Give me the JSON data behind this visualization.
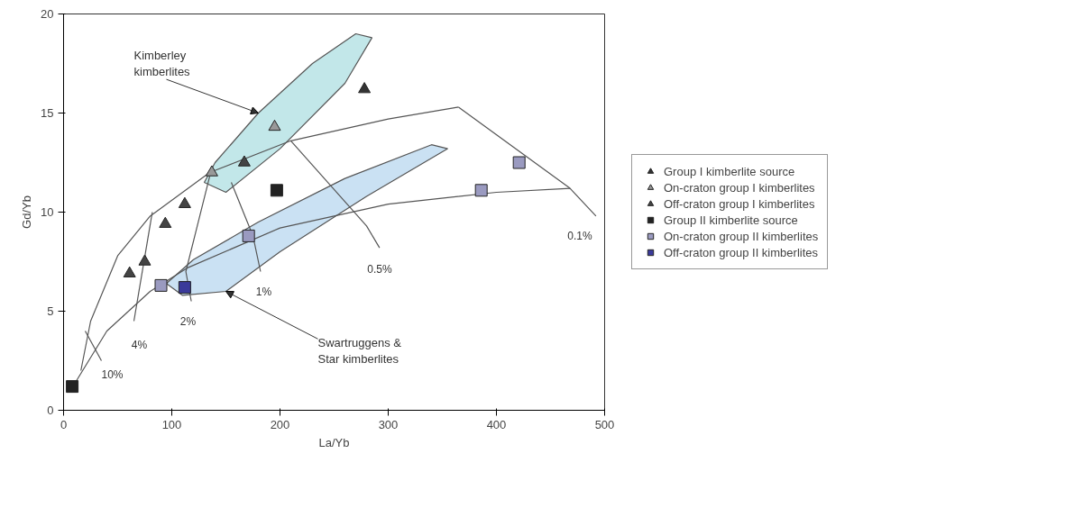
{
  "chart_data": {
    "type": "scatter",
    "xlabel": "La/Yb",
    "ylabel": "Gd/Yb",
    "xlim": [
      0,
      500
    ],
    "ylim": [
      0,
      20
    ],
    "xticks": [
      0,
      100,
      200,
      300,
      400,
      500
    ],
    "yticks": [
      0,
      5,
      10,
      15,
      20
    ],
    "grid": false,
    "legend": "right",
    "annotations": [
      {
        "text": "Kimberley kimberlites",
        "x": 180,
        "y": 15.0
      },
      {
        "text": "Swartruggens & Star kimberlites",
        "x": 150,
        "y": 6.0
      },
      {
        "text": "10%",
        "x": 35,
        "y": 2.5
      },
      {
        "text": "4%",
        "x": 65,
        "y": 4.5
      },
      {
        "text": "2%",
        "x": 118,
        "y": 5.5
      },
      {
        "text": "1%",
        "x": 182,
        "y": 7.0
      },
      {
        "text": "0.5%",
        "x": 292,
        "y": 8.2
      },
      {
        "text": "0.1%",
        "x": 492,
        "y": 9.8
      }
    ],
    "series": [
      {
        "type": "area",
        "color": "#a8dde0",
        "x": [
          130,
          150,
          200,
          260,
          285,
          270,
          230,
          180,
          140,
          130
        ],
        "values": [
          11.5,
          11.0,
          13.2,
          16.5,
          18.8,
          19.0,
          17.5,
          15.0,
          12.5,
          11.5
        ]
      },
      {
        "type": "area",
        "color": "#b3d4ee",
        "x": [
          95,
          110,
          150,
          200,
          280,
          355,
          340,
          260,
          180,
          120,
          95
        ],
        "values": [
          6.4,
          5.8,
          6.0,
          8.0,
          10.8,
          13.2,
          13.4,
          11.7,
          9.5,
          7.6,
          6.4
        ]
      },
      {
        "type": "line",
        "color": "#555555",
        "x": [
          16,
          25,
          50,
          80,
          135,
          210,
          300,
          365
        ],
        "values": [
          2.0,
          4.5,
          7.8,
          9.8,
          12.0,
          13.6,
          14.7,
          15.3
        ]
      },
      {
        "type": "line",
        "color": "#555555",
        "x": [
          12,
          40,
          80,
          115,
          200,
          300,
          400,
          468
        ],
        "values": [
          1.5,
          4.0,
          6.0,
          7.2,
          9.2,
          10.4,
          11.0,
          11.2
        ]
      },
      {
        "type": "line",
        "color": "#555555",
        "x": [
          20,
          35
        ],
        "values": [
          4.0,
          2.5
        ]
      },
      {
        "type": "line",
        "color": "#555555",
        "x": [
          82,
          65
        ],
        "values": [
          10.0,
          4.5
        ]
      },
      {
        "type": "line",
        "color": "#555555",
        "x": [
          135,
          113,
          118
        ],
        "values": [
          11.8,
          7.0,
          5.5
        ]
      },
      {
        "type": "line",
        "color": "#555555",
        "x": [
          155,
          175,
          182
        ],
        "values": [
          11.5,
          8.8,
          7.0
        ]
      },
      {
        "type": "line",
        "color": "#555555",
        "x": [
          210,
          280,
          292
        ],
        "values": [
          13.6,
          9.3,
          8.2
        ]
      },
      {
        "type": "line",
        "color": "#555555",
        "x": [
          365,
          468,
          492
        ],
        "values": [
          15.3,
          11.2,
          9.8
        ]
      },
      {
        "marker": "triangle",
        "name": "Group I kimberlite source",
        "color": "#333333",
        "x": [
          278
        ],
        "values": [
          16.2
        ]
      },
      {
        "marker": "triangle",
        "name": "On-craton group I kimberlites",
        "color": "#999999",
        "x": [
          137,
          195
        ],
        "values": [
          12.0,
          14.3
        ]
      },
      {
        "marker": "triangle",
        "name": "Off-craton group I kimberlites",
        "color": "#444444",
        "x": [
          167,
          112,
          94,
          75,
          61
        ],
        "values": [
          12.5,
          10.4,
          9.4,
          7.5,
          6.9
        ]
      },
      {
        "marker": "square",
        "name": "Group II kimberlite source",
        "color": "#222222",
        "x": [
          8,
          197
        ],
        "values": [
          1.2,
          11.1
        ]
      },
      {
        "marker": "square",
        "name": "On-craton group II kimberlites",
        "color": "#9a9ac0",
        "x": [
          90,
          171,
          386,
          421
        ],
        "values": [
          6.3,
          8.8,
          11.1,
          12.5
        ]
      },
      {
        "marker": "square",
        "name": "Off-craton group II kimberlites",
        "color": "#3a3a9a",
        "x": [
          112
        ],
        "values": [
          6.2
        ]
      }
    ]
  }
}
